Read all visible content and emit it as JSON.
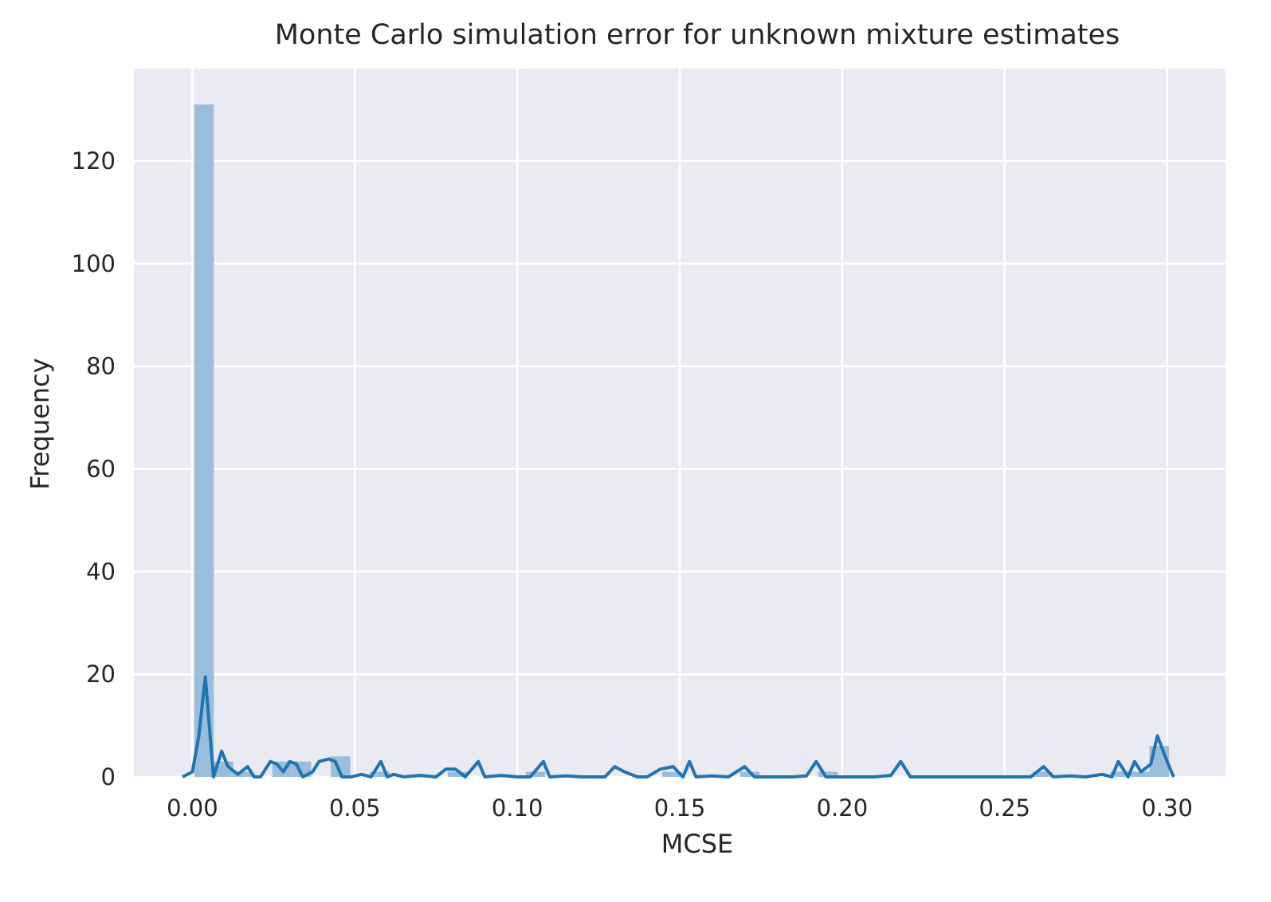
{
  "chart_data": {
    "type": "histogram",
    "title": "Monte Carlo simulation error for unknown mixture estimates",
    "xlabel": "MCSE",
    "ylabel": "Frequency",
    "xlim": [
      -0.018,
      0.318
    ],
    "ylim": [
      0,
      138
    ],
    "xticks": [
      0.0,
      0.05,
      0.1,
      0.15,
      0.2,
      0.25,
      0.3
    ],
    "xtick_labels": [
      "0.00",
      "0.05",
      "0.10",
      "0.15",
      "0.20",
      "0.25",
      "0.30"
    ],
    "yticks": [
      0,
      20,
      40,
      60,
      80,
      100,
      120
    ],
    "ytick_labels": [
      "0",
      "20",
      "40",
      "60",
      "80",
      "100",
      "120"
    ],
    "grid": true,
    "background": "#eaeaf2",
    "bar_color": "#92b8d9",
    "line_color": "#1f74b1",
    "bins": [
      {
        "x0": 0.0006,
        "x1": 0.0066,
        "count": 131
      },
      {
        "x0": 0.0066,
        "x1": 0.0126,
        "count": 3
      },
      {
        "x0": 0.0126,
        "x1": 0.0186,
        "count": 1
      },
      {
        "x0": 0.0246,
        "x1": 0.0306,
        "count": 3
      },
      {
        "x0": 0.0306,
        "x1": 0.0366,
        "count": 3
      },
      {
        "x0": 0.0426,
        "x1": 0.0486,
        "count": 4
      },
      {
        "x0": 0.0546,
        "x1": 0.0606,
        "count": 1
      },
      {
        "x0": 0.0786,
        "x1": 0.0846,
        "count": 1
      },
      {
        "x0": 0.1026,
        "x1": 0.1086,
        "count": 1
      },
      {
        "x0": 0.1446,
        "x1": 0.1506,
        "count": 1
      },
      {
        "x0": 0.1686,
        "x1": 0.1746,
        "count": 1
      },
      {
        "x0": 0.1926,
        "x1": 0.1986,
        "count": 1
      },
      {
        "x0": 0.2586,
        "x1": 0.2646,
        "count": 1
      },
      {
        "x0": 0.2826,
        "x1": 0.2886,
        "count": 1
      },
      {
        "x0": 0.2886,
        "x1": 0.2946,
        "count": 1
      },
      {
        "x0": 0.2946,
        "x1": 0.3006,
        "count": 6
      }
    ],
    "kde_line": {
      "x": [
        -0.003,
        0.0,
        0.002,
        0.004,
        0.0065,
        0.009,
        0.011,
        0.014,
        0.017,
        0.019,
        0.021,
        0.024,
        0.026,
        0.028,
        0.03,
        0.032,
        0.034,
        0.037,
        0.039,
        0.042,
        0.044,
        0.046,
        0.049,
        0.052,
        0.055,
        0.058,
        0.06,
        0.062,
        0.065,
        0.07,
        0.075,
        0.078,
        0.081,
        0.084,
        0.088,
        0.09,
        0.095,
        0.1,
        0.104,
        0.108,
        0.11,
        0.115,
        0.12,
        0.127,
        0.13,
        0.133,
        0.137,
        0.14,
        0.144,
        0.148,
        0.151,
        0.153,
        0.155,
        0.16,
        0.165,
        0.17,
        0.173,
        0.178,
        0.185,
        0.189,
        0.192,
        0.195,
        0.2,
        0.21,
        0.215,
        0.218,
        0.221,
        0.225,
        0.23,
        0.24,
        0.25,
        0.255,
        0.258,
        0.262,
        0.265,
        0.27,
        0.275,
        0.28,
        0.283,
        0.285,
        0.288,
        0.29,
        0.292,
        0.295,
        0.297,
        0.3,
        0.302
      ],
      "y": [
        0,
        1,
        8,
        19.5,
        0,
        5,
        2,
        0.5,
        2,
        0,
        0,
        3,
        2.5,
        1,
        3,
        2.5,
        0,
        1,
        3,
        3.5,
        3,
        0,
        0,
        0.5,
        0,
        3,
        0,
        0.5,
        0,
        0.3,
        0,
        1.5,
        1.5,
        0,
        3,
        0,
        0.3,
        0,
        0,
        3,
        0,
        0.2,
        0,
        0,
        2,
        1,
        0,
        0,
        1.5,
        2,
        0,
        3,
        0,
        0.2,
        0,
        2,
        0,
        0,
        0,
        0.2,
        3,
        0,
        0,
        0,
        0.3,
        3,
        0,
        0,
        0,
        0,
        0,
        0,
        0,
        2,
        0,
        0.2,
        0,
        0.5,
        0,
        3,
        0,
        3,
        1,
        2.5,
        8,
        3,
        0
      ]
    }
  }
}
